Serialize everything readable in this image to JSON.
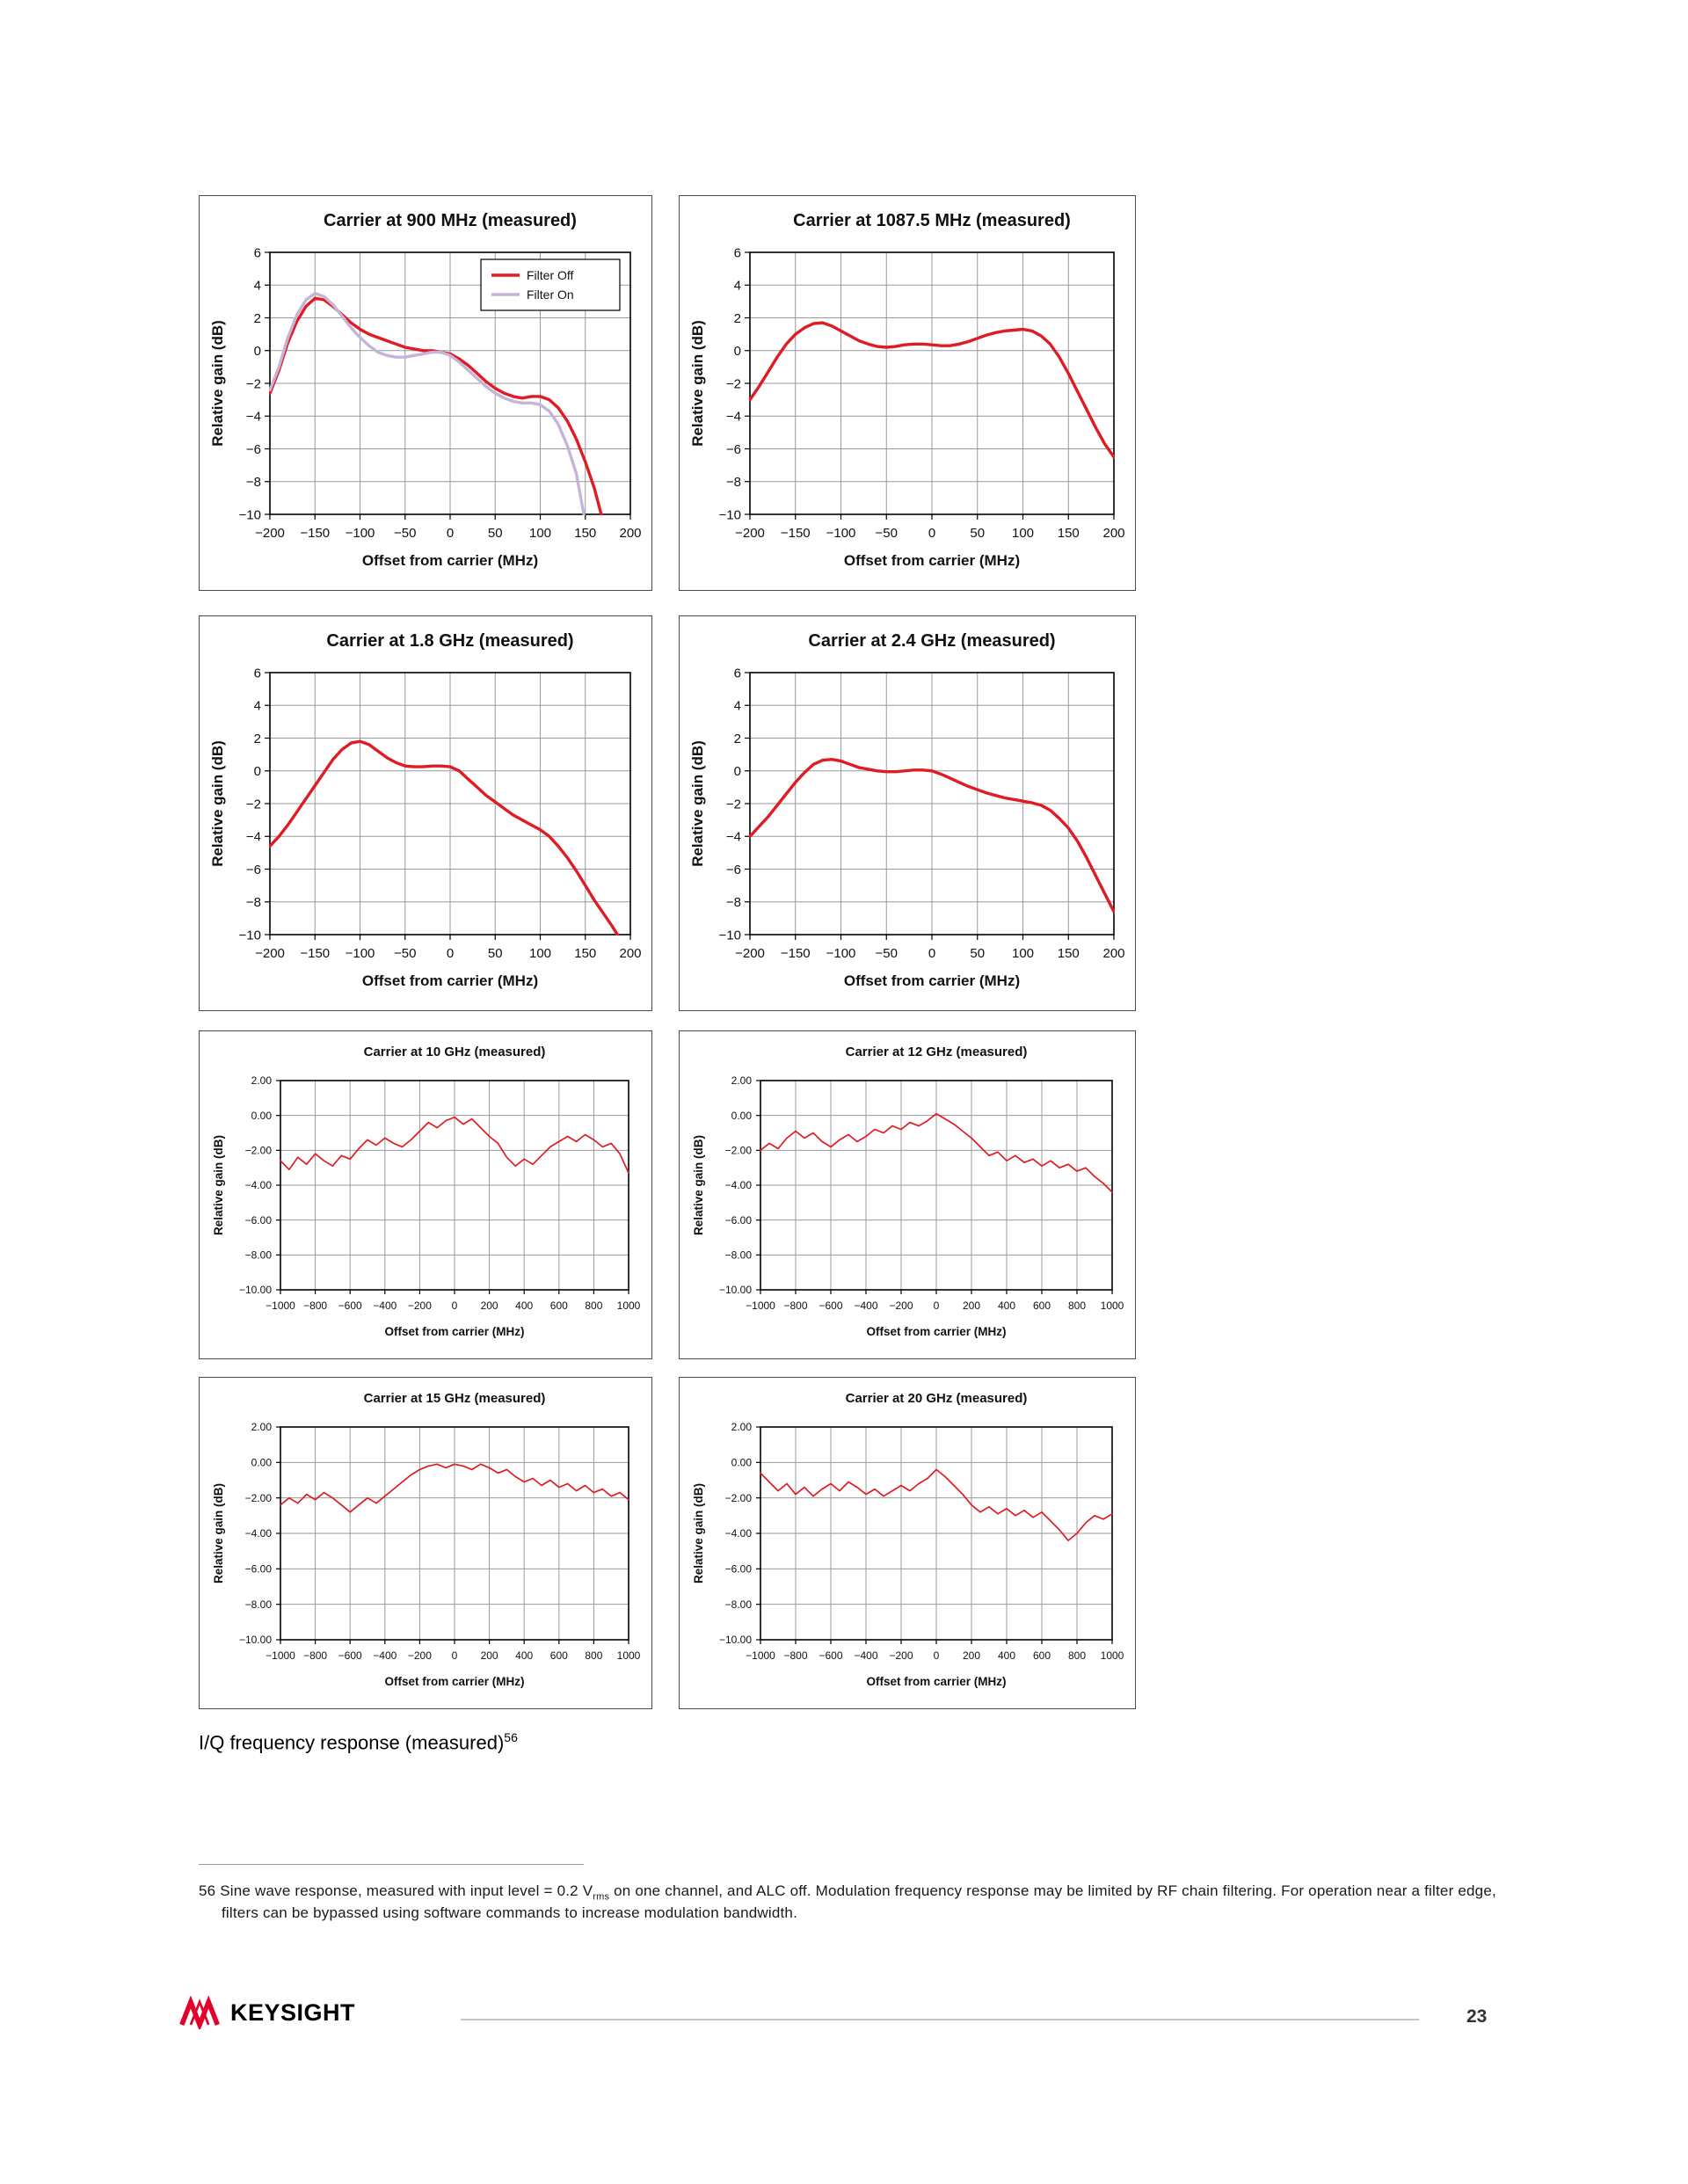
{
  "page": {
    "heading": "I/Q frequency response (measured)",
    "heading_superscript": "56",
    "footnote": {
      "number": "56",
      "text_before_sub": "Sine wave response, measured with input level = 0.2 V",
      "sub": "rms",
      "text_after_sub": " on one channel, and ALC off. Modulation frequency response may be limited by RF chain filtering. For operation near a filter edge, filters can be bypassed using software commands to increase modulation bandwidth."
    },
    "footer": {
      "brand": "KEYSIGHT",
      "page_number": "23"
    }
  },
  "colors": {
    "series_red": "#e01b24",
    "series_lavender": "#c6b4d8",
    "grid": "#999999",
    "axis": "#000000"
  },
  "chart_data": [
    {
      "type": "line",
      "title": "Carrier at 900 MHz (measured)",
      "xlabel": "Offset from carrier (MHz)",
      "ylabel": "Relative gain (dB)",
      "xlim": [
        -200,
        200
      ],
      "xstep": 50,
      "ylim": [
        -10,
        6
      ],
      "ystep": 2,
      "y_tick_format": "int",
      "grid": true,
      "legend_position": "top-right",
      "legend": true,
      "series": [
        {
          "name": "Filter Off",
          "color": "#e01b24",
          "x0": -200,
          "dx": 10,
          "y": [
            -2.6,
            -1.2,
            0.5,
            1.8,
            2.7,
            3.2,
            3.1,
            2.7,
            2.2,
            1.7,
            1.3,
            1.0,
            0.8,
            0.6,
            0.4,
            0.2,
            0.1,
            0.0,
            0.0,
            -0.1,
            -0.2,
            -0.5,
            -0.9,
            -1.4,
            -1.9,
            -2.3,
            -2.6,
            -2.8,
            -2.9,
            -2.8,
            -2.8,
            -3.0,
            -3.5,
            -4.3,
            -5.4,
            -6.8,
            -8.4,
            -10.5
          ]
        },
        {
          "name": "Filter On",
          "color": "#c6b4d8",
          "x0": -200,
          "dx": 10,
          "y": [
            -2.4,
            -1.0,
            0.8,
            2.2,
            3.1,
            3.5,
            3.3,
            2.8,
            2.1,
            1.4,
            0.8,
            0.3,
            -0.1,
            -0.3,
            -0.4,
            -0.4,
            -0.3,
            -0.2,
            -0.1,
            -0.1,
            -0.3,
            -0.7,
            -1.2,
            -1.7,
            -2.2,
            -2.6,
            -2.9,
            -3.1,
            -3.2,
            -3.2,
            -3.3,
            -3.7,
            -4.5,
            -5.8,
            -7.5,
            -10.5
          ]
        }
      ]
    },
    {
      "type": "line",
      "title": "Carrier at 1087.5 MHz (measured)",
      "xlabel": "Offset from carrier (MHz)",
      "ylabel": "Relative gain (dB)",
      "xlim": [
        -200,
        200
      ],
      "xstep": 50,
      "ylim": [
        -10,
        6
      ],
      "ystep": 2,
      "y_tick_format": "int",
      "grid": true,
      "legend": false,
      "series": [
        {
          "name": "response",
          "color": "#e01b24",
          "x0": -200,
          "dx": 10,
          "y": [
            -3.0,
            -2.2,
            -1.3,
            -0.4,
            0.4,
            1.0,
            1.4,
            1.65,
            1.7,
            1.5,
            1.2,
            0.9,
            0.6,
            0.4,
            0.25,
            0.2,
            0.25,
            0.35,
            0.4,
            0.4,
            0.35,
            0.3,
            0.3,
            0.4,
            0.55,
            0.75,
            0.95,
            1.1,
            1.2,
            1.25,
            1.3,
            1.2,
            0.9,
            0.4,
            -0.4,
            -1.4,
            -2.5,
            -3.6,
            -4.7,
            -5.7,
            -6.5
          ]
        }
      ]
    },
    {
      "type": "line",
      "title": "Carrier at 1.8 GHz (measured)",
      "xlabel": "Offset from carrier (MHz)",
      "ylabel": "Relative gain (dB)",
      "xlim": [
        -200,
        200
      ],
      "xstep": 50,
      "ylim": [
        -10,
        6
      ],
      "ystep": 2,
      "y_tick_format": "int",
      "grid": true,
      "legend": false,
      "series": [
        {
          "name": "response",
          "color": "#e01b24",
          "x0": -200,
          "dx": 10,
          "y": [
            -4.6,
            -4.0,
            -3.3,
            -2.5,
            -1.7,
            -0.9,
            -0.1,
            0.7,
            1.3,
            1.7,
            1.8,
            1.6,
            1.2,
            0.8,
            0.5,
            0.3,
            0.25,
            0.25,
            0.3,
            0.3,
            0.25,
            0.0,
            -0.5,
            -1.0,
            -1.5,
            -1.9,
            -2.3,
            -2.7,
            -3.0,
            -3.3,
            -3.6,
            -4.0,
            -4.6,
            -5.3,
            -6.1,
            -7.0,
            -7.9,
            -8.7,
            -9.5,
            -10.4
          ]
        }
      ]
    },
    {
      "type": "line",
      "title": "Carrier at 2.4 GHz (measured)",
      "xlabel": "Offset from carrier (MHz)",
      "ylabel": "Relative gain (dB)",
      "xlim": [
        -200,
        200
      ],
      "xstep": 50,
      "ylim": [
        -10,
        6
      ],
      "ystep": 2,
      "y_tick_format": "int",
      "grid": true,
      "legend": false,
      "series": [
        {
          "name": "response",
          "color": "#e01b24",
          "x0": -200,
          "dx": 10,
          "y": [
            -4.0,
            -3.4,
            -2.8,
            -2.1,
            -1.4,
            -0.7,
            -0.1,
            0.4,
            0.65,
            0.7,
            0.6,
            0.4,
            0.2,
            0.1,
            0.0,
            -0.05,
            -0.05,
            0.0,
            0.05,
            0.05,
            0.0,
            -0.2,
            -0.45,
            -0.7,
            -0.95,
            -1.15,
            -1.35,
            -1.5,
            -1.65,
            -1.75,
            -1.85,
            -1.95,
            -2.1,
            -2.4,
            -2.9,
            -3.5,
            -4.3,
            -5.3,
            -6.4,
            -7.5,
            -8.6
          ]
        }
      ]
    },
    {
      "type": "line",
      "title": "Carrier at 10 GHz (measured)",
      "xlabel": "Offset from carrier (MHz)",
      "ylabel": "Relative gain (dB)",
      "xlim": [
        -1000,
        1000
      ],
      "xstep": 200,
      "ylim": [
        -10,
        2
      ],
      "ystep": 2,
      "y_tick_format": "2dp",
      "grid": true,
      "legend": false,
      "series": [
        {
          "name": "response",
          "color": "#e01b24",
          "x0": -1000,
          "dx": 50,
          "y": [
            -2.6,
            -3.1,
            -2.4,
            -2.8,
            -2.2,
            -2.6,
            -2.9,
            -2.3,
            -2.5,
            -1.9,
            -1.4,
            -1.7,
            -1.3,
            -1.6,
            -1.8,
            -1.4,
            -0.9,
            -0.4,
            -0.7,
            -0.3,
            -0.1,
            -0.5,
            -0.2,
            -0.7,
            -1.2,
            -1.6,
            -2.4,
            -2.9,
            -2.5,
            -2.8,
            -2.3,
            -1.8,
            -1.5,
            -1.2,
            -1.5,
            -1.1,
            -1.4,
            -1.8,
            -1.6,
            -2.2,
            -3.3
          ]
        }
      ]
    },
    {
      "type": "line",
      "title": "Carrier at 12 GHz (measured)",
      "xlabel": "Offset from carrier (MHz)",
      "ylabel": "Relative gain (dB)",
      "xlim": [
        -1000,
        1000
      ],
      "xstep": 200,
      "ylim": [
        -10,
        2
      ],
      "ystep": 2,
      "y_tick_format": "2dp",
      "grid": true,
      "legend": false,
      "series": [
        {
          "name": "response",
          "color": "#e01b24",
          "x0": -1000,
          "dx": 50,
          "y": [
            -2.0,
            -1.6,
            -1.9,
            -1.3,
            -0.9,
            -1.3,
            -1.0,
            -1.5,
            -1.8,
            -1.4,
            -1.1,
            -1.5,
            -1.2,
            -0.8,
            -1.0,
            -0.6,
            -0.8,
            -0.4,
            -0.6,
            -0.3,
            0.1,
            -0.2,
            -0.5,
            -0.9,
            -1.3,
            -1.8,
            -2.3,
            -2.1,
            -2.6,
            -2.3,
            -2.7,
            -2.5,
            -2.9,
            -2.6,
            -3.0,
            -2.8,
            -3.2,
            -3.0,
            -3.5,
            -3.9,
            -4.4
          ]
        }
      ]
    },
    {
      "type": "line",
      "title": "Carrier at 15 GHz (measured)",
      "xlabel": "Offset from carrier (MHz)",
      "ylabel": "Relative gain (dB)",
      "xlim": [
        -1000,
        1000
      ],
      "xstep": 200,
      "ylim": [
        -10,
        2
      ],
      "ystep": 2,
      "y_tick_format": "2dp",
      "grid": true,
      "legend": false,
      "series": [
        {
          "name": "response",
          "color": "#e01b24",
          "x0": -1000,
          "dx": 50,
          "y": [
            -2.4,
            -2.0,
            -2.3,
            -1.8,
            -2.1,
            -1.7,
            -2.0,
            -2.4,
            -2.8,
            -2.4,
            -2.0,
            -2.3,
            -1.9,
            -1.5,
            -1.1,
            -0.7,
            -0.4,
            -0.2,
            -0.1,
            -0.3,
            -0.1,
            -0.2,
            -0.4,
            -0.1,
            -0.3,
            -0.6,
            -0.4,
            -0.8,
            -1.1,
            -0.9,
            -1.3,
            -1.0,
            -1.4,
            -1.2,
            -1.6,
            -1.3,
            -1.7,
            -1.5,
            -1.9,
            -1.7,
            -2.1
          ]
        }
      ]
    },
    {
      "type": "line",
      "title": "Carrier at 20 GHz (measured)",
      "xlabel": "Offset from carrier (MHz)",
      "ylabel": "Relative gain (dB)",
      "xlim": [
        -1000,
        1000
      ],
      "xstep": 200,
      "ylim": [
        -10,
        2
      ],
      "ystep": 2,
      "y_tick_format": "2dp",
      "grid": true,
      "legend": false,
      "series": [
        {
          "name": "response",
          "color": "#e01b24",
          "x0": -1000,
          "dx": 50,
          "y": [
            -0.6,
            -1.1,
            -1.6,
            -1.2,
            -1.8,
            -1.4,
            -1.9,
            -1.5,
            -1.2,
            -1.6,
            -1.1,
            -1.4,
            -1.8,
            -1.5,
            -1.9,
            -1.6,
            -1.3,
            -1.6,
            -1.2,
            -0.9,
            -0.4,
            -0.8,
            -1.3,
            -1.8,
            -2.4,
            -2.8,
            -2.5,
            -2.9,
            -2.6,
            -3.0,
            -2.7,
            -3.1,
            -2.8,
            -3.3,
            -3.8,
            -4.4,
            -4.0,
            -3.4,
            -3.0,
            -3.2,
            -2.9
          ]
        }
      ]
    }
  ]
}
